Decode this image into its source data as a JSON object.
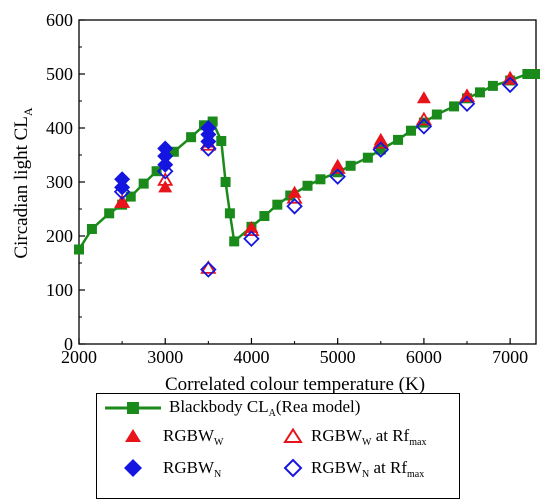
{
  "chart_data": {
    "type": "scatter",
    "title": "",
    "xlabel": "Correlated colour temperature (K)",
    "ylabel": {
      "main": "Circadian light CL",
      "sub": "A"
    },
    "xlim": [
      2000,
      7300
    ],
    "ylim": [
      0,
      600
    ],
    "xticks": [
      2000,
      3000,
      4000,
      5000,
      6000,
      7000
    ],
    "yticks": [
      0,
      100,
      200,
      300,
      400,
      500,
      600
    ],
    "grid": false,
    "legend_position": "bottom-outside",
    "series": [
      {
        "name": "Blackbody CL_A(Rea model)",
        "style": "line-square",
        "color": "#1a8a1a",
        "x": [
          2000,
          2150,
          2350,
          2500,
          2600,
          2750,
          2900,
          3100,
          3300,
          3450,
          3550,
          3650,
          3700,
          3750,
          3800,
          4000,
          4150,
          4300,
          4450,
          4650,
          4800,
          5000,
          5150,
          5350,
          5500,
          5700,
          5850,
          6000,
          6150,
          6350,
          6500,
          6650,
          6800,
          7000,
          7200,
          7300
        ],
        "y": [
          175,
          213,
          242,
          258,
          273,
          297,
          320,
          356,
          383,
          405,
          412,
          376,
          300,
          242,
          190,
          217,
          237,
          258,
          275,
          293,
          305,
          318,
          330,
          345,
          360,
          378,
          395,
          410,
          425,
          440,
          455,
          466,
          478,
          488,
          500,
          500
        ]
      },
      {
        "name": "RGBW_W",
        "style": "filled-triangle",
        "color": "#e8141c",
        "x": [
          2500,
          3000,
          3500,
          4000,
          4500,
          5000,
          5500,
          6000,
          6500,
          7000
        ],
        "y": [
          262,
          290,
          373,
          215,
          280,
          330,
          378,
          455,
          460,
          493
        ]
      },
      {
        "name": "RGBW_W at Rf_max",
        "style": "open-triangle",
        "color": "#e8141c",
        "x": [
          2500,
          3000,
          3500,
          3500,
          4000,
          4500,
          5000,
          5500,
          6000,
          6500,
          7000
        ],
        "y": [
          262,
          303,
          368,
          140,
          210,
          270,
          325,
          372,
          415,
          458,
          490
        ]
      },
      {
        "name": "RGBW_N",
        "style": "filled-diamond",
        "color": "#1515e0",
        "x": [
          2500,
          2500,
          3000,
          3000,
          3000,
          3500,
          3500,
          3500
        ],
        "y": [
          305,
          290,
          362,
          348,
          332,
          400,
          388,
          375
        ]
      },
      {
        "name": "RGBW_N at Rf_max",
        "style": "open-diamond",
        "color": "#1515e0",
        "x": [
          2500,
          3000,
          3500,
          3500,
          4000,
          4500,
          5000,
          5500,
          6000,
          6500,
          7000
        ],
        "y": [
          282,
          320,
          362,
          138,
          195,
          255,
          310,
          360,
          403,
          445,
          480
        ]
      }
    ]
  },
  "legend": {
    "items": [
      {
        "main": "Blackbody CL",
        "sub": "A",
        "tail": "(Rea model)"
      },
      {
        "main": "RGBW",
        "sub": "W",
        "tail": ""
      },
      {
        "main": "RGBW",
        "sub": "W",
        "tail": " at Rf",
        "sub2": "max"
      },
      {
        "main": "RGBW",
        "sub": "N",
        "tail": ""
      },
      {
        "main": "RGBW",
        "sub": "N",
        "tail": " at Rf",
        "sub2": "max"
      }
    ]
  }
}
